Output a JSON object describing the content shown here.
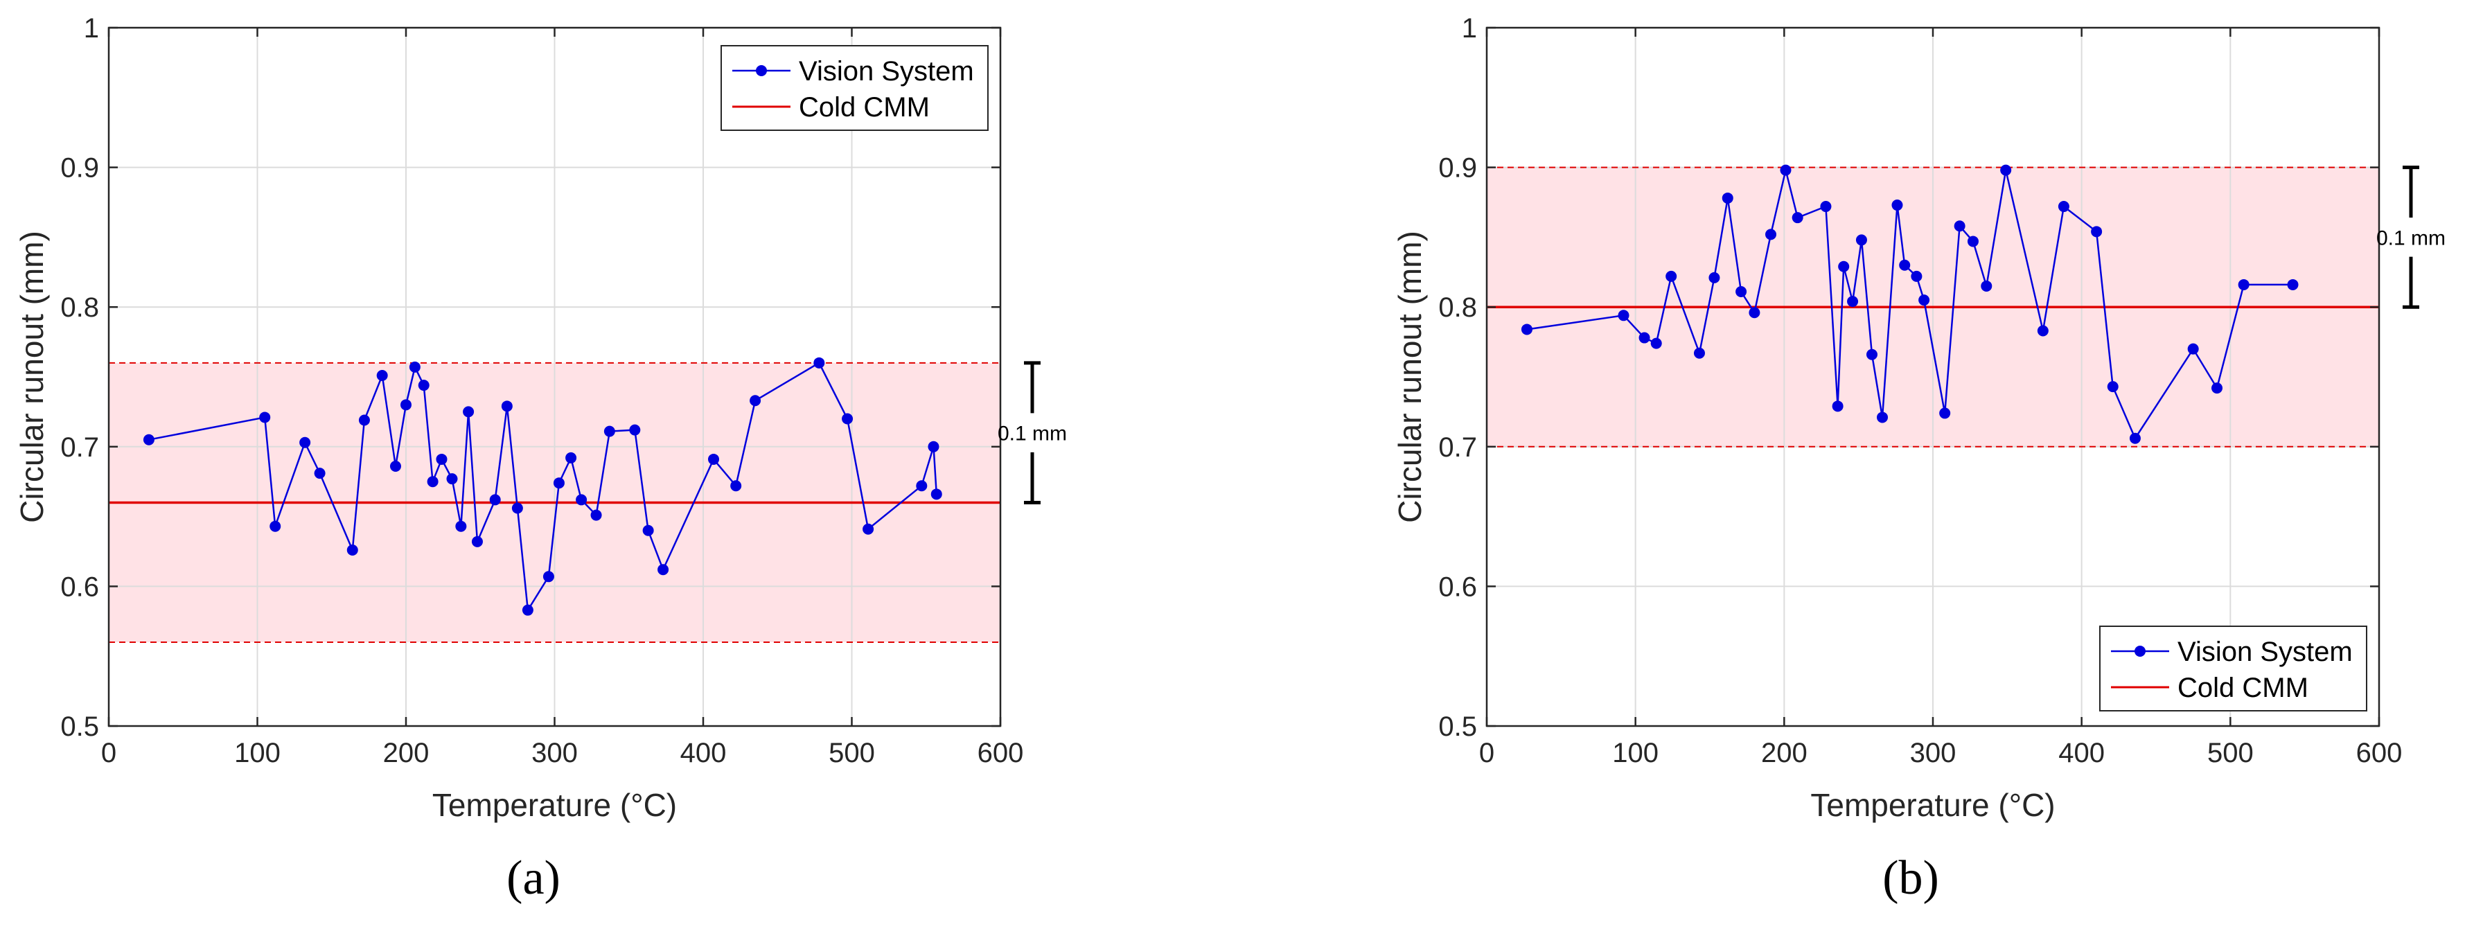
{
  "figure": {
    "panels": [
      {
        "id": "a",
        "caption": "(a)"
      },
      {
        "id": "b",
        "caption": "(b)"
      }
    ]
  },
  "chart_data": [
    {
      "type": "line",
      "panel": "(a)",
      "xlabel": "Temperature (°C)",
      "ylabel": "Circular runout (mm)",
      "xlim": [
        0,
        600
      ],
      "ylim": [
        0.5,
        1.0
      ],
      "xticks": [
        0,
        100,
        200,
        300,
        400,
        500,
        600
      ],
      "yticks": [
        0.5,
        0.6,
        0.7,
        0.8,
        0.9,
        1.0
      ],
      "xtick_labels": [
        "0",
        "100",
        "200",
        "300",
        "400",
        "500",
        "600"
      ],
      "ytick_labels": [
        "0.5",
        "0.6",
        "0.7",
        "0.8",
        "0.9",
        "1"
      ],
      "grid": true,
      "legend_position": "top-right",
      "series": [
        {
          "name": "Vision System",
          "color": "#0000dd",
          "x": [
            27,
            105,
            112,
            132,
            142,
            164,
            172,
            184,
            193,
            200,
            206,
            212,
            218,
            224,
            231,
            237,
            242,
            248,
            260,
            268,
            275,
            282,
            296,
            303,
            311,
            318,
            328,
            337,
            354,
            363,
            373,
            407,
            422,
            435,
            478,
            497,
            511,
            547,
            555,
            557
          ],
          "y": [
            0.705,
            0.721,
            0.643,
            0.703,
            0.681,
            0.626,
            0.719,
            0.751,
            0.686,
            0.73,
            0.757,
            0.744,
            0.675,
            0.691,
            0.677,
            0.643,
            0.725,
            0.632,
            0.662,
            0.729,
            0.656,
            0.583,
            0.607,
            0.674,
            0.692,
            0.662,
            0.651,
            0.711,
            0.712,
            0.64,
            0.612,
            0.691,
            0.672,
            0.733,
            0.76,
            0.72,
            0.641,
            0.672,
            0.7,
            0.666
          ]
        }
      ],
      "reference": {
        "name": "Cold CMM",
        "value": 0.66,
        "color": "#e00000"
      },
      "tolerance_band": {
        "lower": 0.56,
        "upper": 0.76,
        "fill": "#ffe2e6"
      },
      "annotation": {
        "text": "0.1 mm",
        "span": [
          0.66,
          0.76
        ]
      }
    },
    {
      "type": "line",
      "panel": "(b)",
      "xlabel": "Temperature (°C)",
      "ylabel": "Circular runout (mm)",
      "xlim": [
        0,
        600
      ],
      "ylim": [
        0.5,
        1.0
      ],
      "xticks": [
        0,
        100,
        200,
        300,
        400,
        500,
        600
      ],
      "yticks": [
        0.5,
        0.6,
        0.7,
        0.8,
        0.9,
        1.0
      ],
      "xtick_labels": [
        "0",
        "100",
        "200",
        "300",
        "400",
        "500",
        "600"
      ],
      "ytick_labels": [
        "0.5",
        "0.6",
        "0.7",
        "0.8",
        "0.9",
        "1"
      ],
      "grid": true,
      "legend_position": "bottom-right",
      "series": [
        {
          "name": "Vision System",
          "color": "#0000dd",
          "x": [
            27,
            92,
            106,
            114,
            124,
            143,
            153,
            162,
            171,
            180,
            191,
            201,
            209,
            228,
            236,
            240,
            246,
            252,
            259,
            266,
            276,
            281,
            289,
            294,
            308,
            318,
            327,
            336,
            349,
            374,
            388,
            410,
            421,
            436,
            475,
            491,
            509,
            542
          ],
          "y": [
            0.784,
            0.794,
            0.778,
            0.774,
            0.822,
            0.767,
            0.821,
            0.878,
            0.811,
            0.796,
            0.852,
            0.898,
            0.864,
            0.872,
            0.729,
            0.829,
            0.804,
            0.848,
            0.766,
            0.721,
            0.873,
            0.83,
            0.822,
            0.805,
            0.724,
            0.858,
            0.847,
            0.815,
            0.898,
            0.783,
            0.872,
            0.854,
            0.743,
            0.706,
            0.77,
            0.742,
            0.816,
            0.816
          ]
        }
      ],
      "reference": {
        "name": "Cold CMM",
        "value": 0.8,
        "color": "#e00000"
      },
      "tolerance_band": {
        "lower": 0.7,
        "upper": 0.9,
        "fill": "#ffe2e6"
      },
      "annotation": {
        "text": "0.1 mm",
        "span": [
          0.8,
          0.9
        ]
      }
    }
  ]
}
